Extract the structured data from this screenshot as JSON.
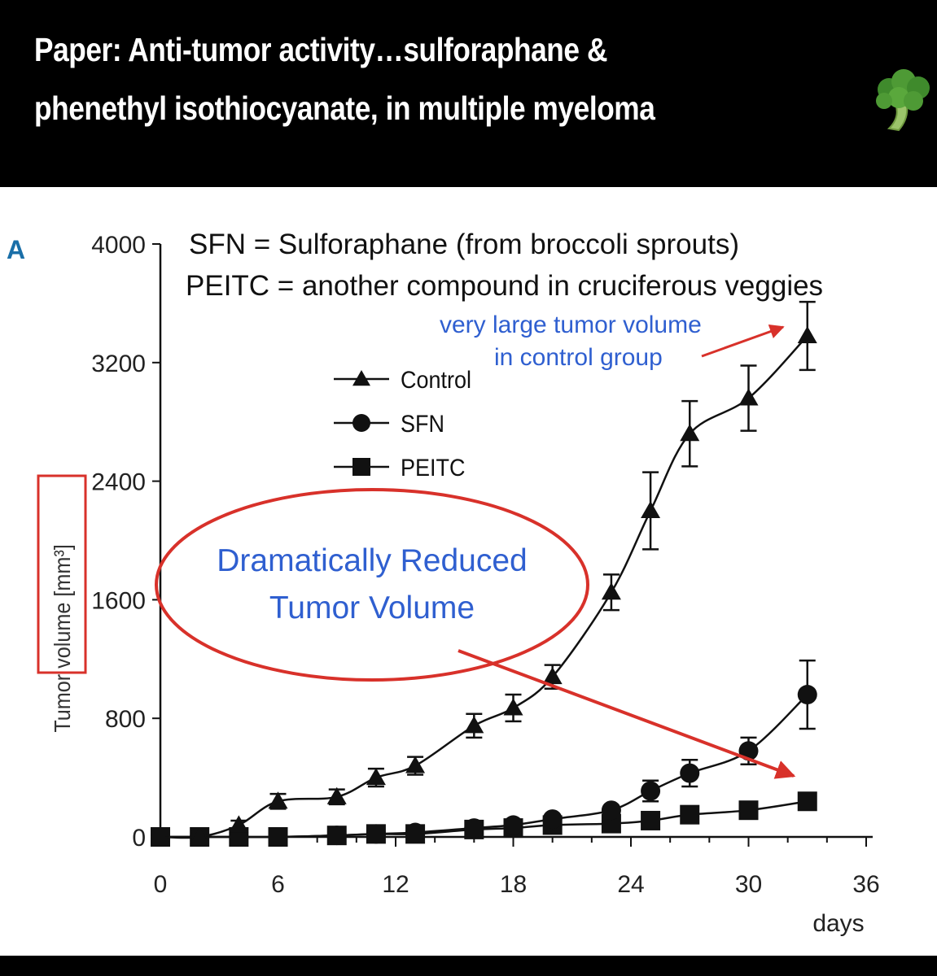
{
  "header": {
    "line1": "Paper: Anti-tumor activity…sulforaphane &",
    "line2": "phenethyl isothiocyanate, in multiple myeloma"
  },
  "panel_label": "A",
  "definitions": {
    "line1": "SFN = Sulforaphane (from broccoli sprouts)",
    "line2": "PEITC = another compound in cruciferous veggies"
  },
  "annotations": {
    "control_note_line1": "very large tumor volume",
    "control_note_line2": "in control group",
    "reduced_line1": "Dramatically Reduced",
    "reduced_line2": "Tumor Volume"
  },
  "colors": {
    "header_bg": "#000000",
    "annotation_red": "#d8312a",
    "annotation_blue": "#2f5fd0",
    "series": "#111111",
    "panel_label": "#1a6fa8"
  },
  "icons": {
    "header_emoji": "broccoli-icon"
  },
  "chart_data": {
    "type": "line",
    "ylabel": "Tumor volume [mm³]",
    "xlabel": "days",
    "x_ticks": [
      0,
      6,
      12,
      18,
      24,
      30,
      36
    ],
    "y_ticks": [
      0,
      800,
      1600,
      2400,
      3200,
      4000
    ],
    "xlim": [
      0,
      36
    ],
    "ylim": [
      0,
      4000
    ],
    "legend_position": "upper-left",
    "series": [
      {
        "name": "Control",
        "marker": "triangle",
        "x": [
          0,
          2,
          4,
          6,
          9,
          11,
          13,
          16,
          18,
          20,
          23,
          25,
          27,
          30,
          33
        ],
        "y": [
          0,
          0,
          80,
          240,
          270,
          400,
          480,
          750,
          870,
          1080,
          1650,
          2200,
          2720,
          2960,
          3380
        ],
        "err": [
          0,
          0,
          30,
          50,
          50,
          60,
          60,
          80,
          90,
          80,
          120,
          260,
          220,
          220,
          230
        ]
      },
      {
        "name": "SFN",
        "marker": "circle",
        "x": [
          0,
          2,
          4,
          6,
          9,
          11,
          13,
          16,
          18,
          20,
          23,
          25,
          27,
          30,
          33
        ],
        "y": [
          0,
          0,
          0,
          0,
          10,
          20,
          30,
          60,
          80,
          120,
          180,
          310,
          430,
          580,
          960
        ],
        "err": [
          0,
          0,
          0,
          0,
          0,
          0,
          0,
          0,
          20,
          20,
          30,
          70,
          90,
          90,
          230
        ]
      },
      {
        "name": "PEITC",
        "marker": "square",
        "x": [
          0,
          2,
          4,
          6,
          9,
          11,
          13,
          16,
          18,
          20,
          23,
          25,
          27,
          30,
          33
        ],
        "y": [
          0,
          0,
          0,
          0,
          10,
          20,
          20,
          50,
          60,
          80,
          90,
          110,
          150,
          180,
          240
        ],
        "err": [
          0,
          0,
          0,
          0,
          0,
          0,
          0,
          0,
          0,
          10,
          10,
          20,
          20,
          30,
          40
        ]
      }
    ]
  }
}
